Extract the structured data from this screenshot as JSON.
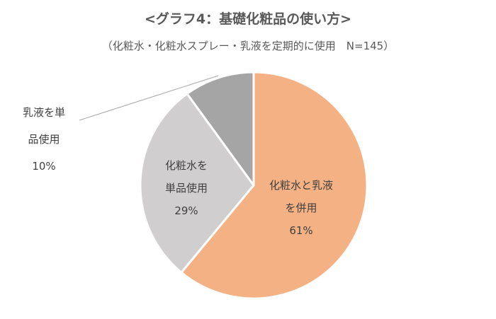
{
  "chart_data": {
    "type": "pie",
    "title": "<グラフ4：基礎化粧品の使い方>",
    "subtitle": "（化粧水・化粧水スプレー・乳液を定期的に使用　N=145）",
    "slices": [
      {
        "label_lines": [
          "化粧水と乳液",
          "を併用"
        ],
        "value": 61,
        "value_label": "61%",
        "color": "#F4B183"
      },
      {
        "label_lines": [
          "化粧水を",
          "単品使用"
        ],
        "value": 29,
        "value_label": "29%",
        "color": "#D0CECE"
      },
      {
        "label_lines": [
          "乳液を単",
          "品使用"
        ],
        "value": 10,
        "value_label": "10%",
        "color": "#A5A5A5"
      }
    ],
    "start": "top",
    "direction": "clockwise"
  }
}
